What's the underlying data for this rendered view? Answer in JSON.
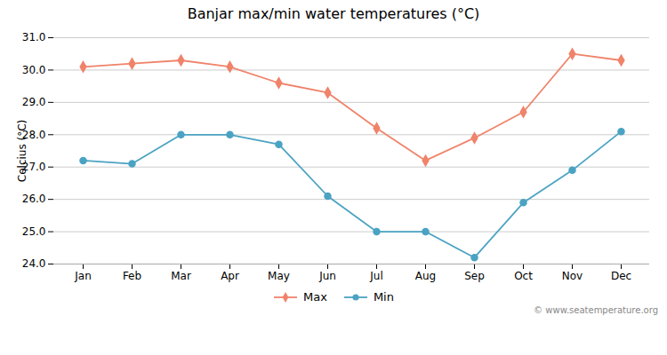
{
  "chart_data": {
    "type": "line",
    "title": "Banjar max/min water temperatures (°C)",
    "ylabel": "Celcius (°C)",
    "categories": [
      "Jan",
      "Feb",
      "Mar",
      "Apr",
      "May",
      "Jun",
      "Jul",
      "Aug",
      "Sep",
      "Oct",
      "Nov",
      "Dec"
    ],
    "series": [
      {
        "name": "Max",
        "color": "#f0836a",
        "marker": "diamond",
        "line_style": "solid",
        "values": [
          30.1,
          30.2,
          30.3,
          30.1,
          29.6,
          29.3,
          28.2,
          27.2,
          27.9,
          28.7,
          30.5,
          30.3
        ]
      },
      {
        "name": "Min",
        "color": "#4ba3c3",
        "marker": "circle",
        "line_style": "solid",
        "values": [
          27.2,
          27.1,
          28.0,
          28.0,
          27.7,
          26.1,
          25.0,
          25.0,
          24.2,
          25.9,
          26.9,
          28.1
        ]
      }
    ],
    "ylim": [
      24,
      31
    ],
    "yticks": [
      24,
      25,
      26,
      27,
      28,
      29,
      30,
      31
    ],
    "grid": true,
    "legend": "bottom",
    "annotations": [
      "© www.seatemperature.org"
    ]
  }
}
